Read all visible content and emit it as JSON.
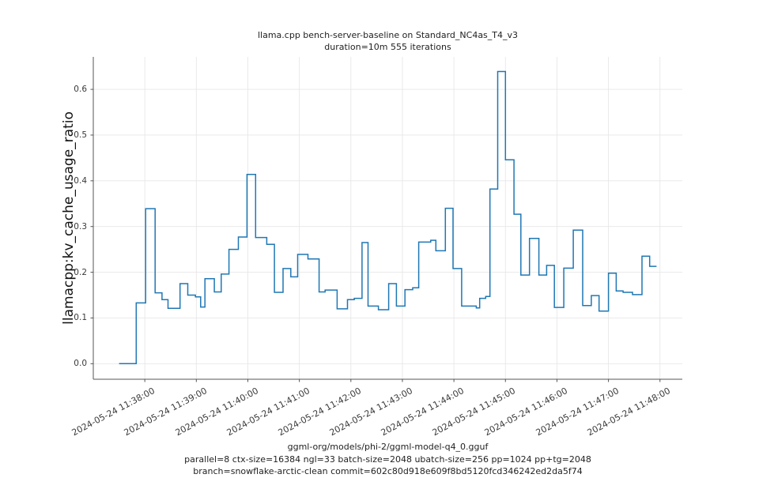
{
  "title": {
    "line1": "llama.cpp bench-server-baseline on Standard_NC4as_T4_v3",
    "line2": "duration=10m 555 iterations"
  },
  "footer": {
    "line1": "ggml-org/models/phi-2/ggml-model-q4_0.gguf",
    "line2": "parallel=8 ctx-size=16384 ngl=33 batch-size=2048 ubatch-size=256 pp=1024 pp+tg=2048",
    "line3": "branch=snowflake-arctic-clean commit=602c80d918e609f8bd5120fcd346242ed2da5f74"
  },
  "chart_data": {
    "type": "line",
    "step": true,
    "title": "llama.cpp bench-server-baseline on Standard_NC4as_T4_v3 — duration=10m 555 iterations",
    "xlabel": "",
    "ylabel": "llamacpp:kv_cache_usage_ratio",
    "grid": true,
    "legend": "none",
    "colors": {
      "line": "#1f77b4",
      "grid": "#e7e7e7",
      "spine": "#555555",
      "title_text": "#1f1f1f",
      "tick_text": "#3a3a3a"
    },
    "ylim": [
      -0.034,
      0.671
    ],
    "y_tick_values": [
      0.0,
      0.1,
      0.2,
      0.3,
      0.4,
      0.5,
      0.6
    ],
    "y_tick_labels": [
      "0.0",
      "0.1",
      "0.2",
      "0.3",
      "0.4",
      "0.5",
      "0.6"
    ],
    "xlim_seconds": [
      0,
      686
    ],
    "x_origin_time": "2024-05-24 11:37:00",
    "x_tick_seconds": [
      60,
      120,
      180,
      240,
      300,
      360,
      420,
      480,
      540,
      600,
      660
    ],
    "x_tick_labels": [
      "2024-05-24 11:38:00",
      "2024-05-24 11:39:00",
      "2024-05-24 11:40:00",
      "2024-05-24 11:41:00",
      "2024-05-24 11:42:00",
      "2024-05-24 11:43:00",
      "2024-05-24 11:44:00",
      "2024-05-24 11:45:00",
      "2024-05-24 11:46:00",
      "2024-05-24 11:47:00",
      "2024-05-24 11:48:00"
    ],
    "series_name": "llamacpp:kv_cache_usage_ratio",
    "points_format": "[seconds_since_11:37:00, kv_cache_usage_ratio]",
    "points": [
      [
        30,
        0.0
      ],
      [
        50,
        0.133
      ],
      [
        61,
        0.339
      ],
      [
        72,
        0.155
      ],
      [
        80,
        0.14
      ],
      [
        87,
        0.121
      ],
      [
        101,
        0.175
      ],
      [
        110,
        0.15
      ],
      [
        119,
        0.146
      ],
      [
        125,
        0.124
      ],
      [
        130,
        0.186
      ],
      [
        141,
        0.157
      ],
      [
        149,
        0.196
      ],
      [
        158,
        0.25
      ],
      [
        169,
        0.277
      ],
      [
        179,
        0.414
      ],
      [
        189,
        0.276
      ],
      [
        202,
        0.261
      ],
      [
        211,
        0.156
      ],
      [
        221,
        0.208
      ],
      [
        230,
        0.19
      ],
      [
        238,
        0.239
      ],
      [
        250,
        0.229
      ],
      [
        263,
        0.157
      ],
      [
        270,
        0.161
      ],
      [
        284,
        0.12
      ],
      [
        296,
        0.14
      ],
      [
        304,
        0.143
      ],
      [
        313,
        0.265
      ],
      [
        320,
        0.126
      ],
      [
        332,
        0.118
      ],
      [
        344,
        0.175
      ],
      [
        353,
        0.126
      ],
      [
        363,
        0.162
      ],
      [
        372,
        0.166
      ],
      [
        379,
        0.266
      ],
      [
        393,
        0.27
      ],
      [
        399,
        0.247
      ],
      [
        410,
        0.34
      ],
      [
        419,
        0.208
      ],
      [
        429,
        0.126
      ],
      [
        446,
        0.122
      ],
      [
        450,
        0.143
      ],
      [
        457,
        0.147
      ],
      [
        462,
        0.382
      ],
      [
        471,
        0.639
      ],
      [
        480,
        0.446
      ],
      [
        490,
        0.327
      ],
      [
        498,
        0.194
      ],
      [
        508,
        0.274
      ],
      [
        519,
        0.194
      ],
      [
        528,
        0.215
      ],
      [
        537,
        0.123
      ],
      [
        548,
        0.209
      ],
      [
        559,
        0.292
      ],
      [
        570,
        0.127
      ],
      [
        580,
        0.149
      ],
      [
        589,
        0.115
      ],
      [
        600,
        0.198
      ],
      [
        609,
        0.159
      ],
      [
        617,
        0.156
      ],
      [
        628,
        0.151
      ],
      [
        639,
        0.235
      ],
      [
        648,
        0.213
      ]
    ],
    "end_seconds": 656
  }
}
